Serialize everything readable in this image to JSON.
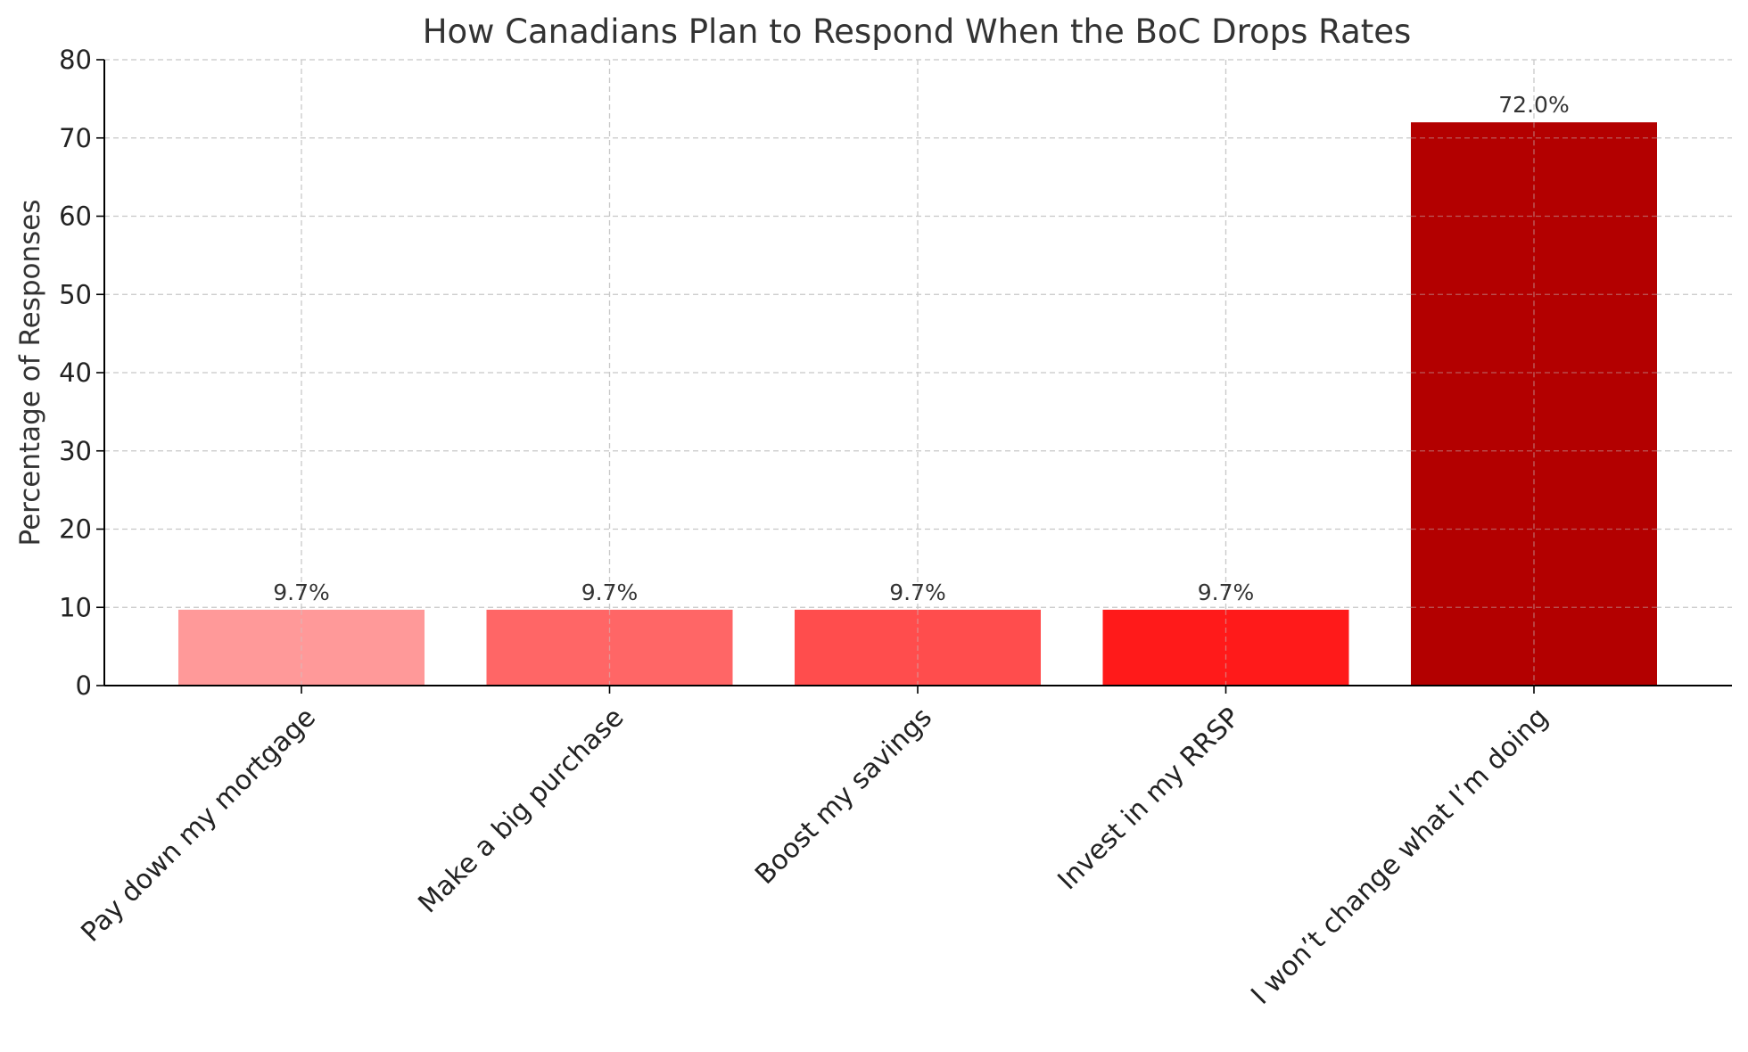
{
  "chart_data": {
    "type": "bar",
    "title": "How Canadians Plan to Respond When the BoC Drops Rates",
    "xlabel": "",
    "ylabel": "Percentage of Responses",
    "categories": [
      "Pay down my mortgage",
      "Make a big purchase",
      "Boost my savings",
      "Invest in my RRSP",
      "I won’t change what I’m doing"
    ],
    "values": [
      9.7,
      9.7,
      9.7,
      9.7,
      72.0
    ],
    "data_labels": [
      "9.7%",
      "9.7%",
      "9.7%",
      "9.7%",
      "72.0%"
    ],
    "colors": [
      "#ff9999",
      "#ff6666",
      "#ff4d4d",
      "#ff1a1a",
      "#b30000"
    ],
    "ylim": [
      0,
      80
    ],
    "yticks": [
      0,
      10,
      20,
      30,
      40,
      50,
      60,
      70,
      80
    ],
    "grid": true,
    "legend": "none"
  }
}
